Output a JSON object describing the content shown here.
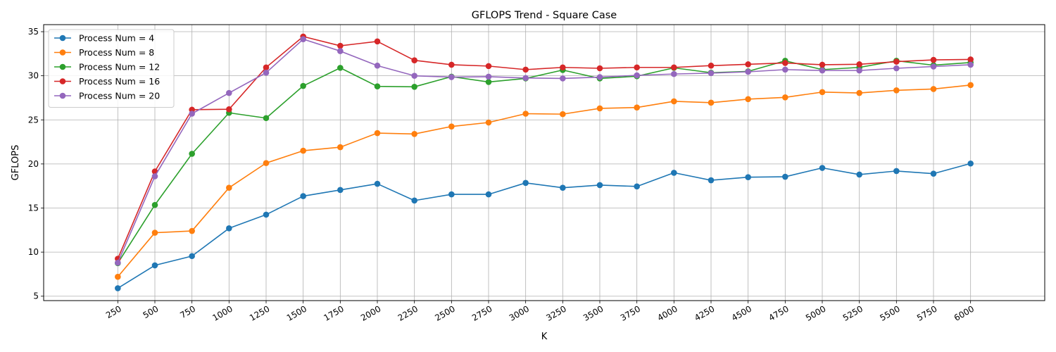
{
  "chart_data": {
    "type": "line",
    "title": "GFLOPS Trend - Square Case",
    "xlabel": "K",
    "ylabel": "GFLOPS",
    "x": [
      250,
      500,
      750,
      1000,
      1250,
      1500,
      1750,
      2000,
      2250,
      2500,
      2750,
      3000,
      3250,
      3500,
      3750,
      4000,
      4250,
      4500,
      4750,
      5000,
      5250,
      5500,
      5750,
      6000
    ],
    "yticks": [
      5,
      10,
      15,
      20,
      25,
      30,
      35
    ],
    "ylim": [
      4.5,
      35.8
    ],
    "xlim": [
      -250,
      6500
    ],
    "grid": true,
    "legend_position": "top-left",
    "series": [
      {
        "name": "Process Num = 4",
        "color": "#1f77b4",
        "values": [
          5.9,
          8.5,
          9.55,
          12.7,
          14.25,
          16.35,
          17.05,
          17.75,
          15.85,
          16.55,
          16.55,
          17.85,
          17.3,
          17.6,
          17.45,
          19.0,
          18.15,
          18.5,
          18.55,
          19.55,
          18.8,
          19.2,
          18.9,
          20.05
        ]
      },
      {
        "name": "Process Num = 8",
        "color": "#ff7f0e",
        "values": [
          7.2,
          12.2,
          12.4,
          17.3,
          20.1,
          21.5,
          21.9,
          23.5,
          23.4,
          24.25,
          24.7,
          25.7,
          25.65,
          26.3,
          26.4,
          27.1,
          26.95,
          27.35,
          27.55,
          28.15,
          28.05,
          28.35,
          28.5,
          28.95
        ]
      },
      {
        "name": "Process Num = 12",
        "color": "#2ca02c",
        "values": [
          8.75,
          15.35,
          21.15,
          25.8,
          25.2,
          28.85,
          30.9,
          28.8,
          28.75,
          29.9,
          29.3,
          29.7,
          30.65,
          29.7,
          29.95,
          30.9,
          30.35,
          30.5,
          31.7,
          30.7,
          30.95,
          31.7,
          31.2,
          31.5
        ]
      },
      {
        "name": "Process Num = 16",
        "color": "#d62728",
        "values": [
          9.25,
          19.15,
          26.15,
          26.2,
          30.95,
          34.45,
          33.4,
          33.9,
          31.75,
          31.25,
          31.1,
          30.7,
          30.95,
          30.85,
          30.95,
          30.95,
          31.15,
          31.3,
          31.45,
          31.25,
          31.3,
          31.6,
          31.8,
          31.85
        ]
      },
      {
        "name": "Process Num = 20",
        "color": "#9467bd",
        "values": [
          8.8,
          18.6,
          25.7,
          28.05,
          30.35,
          34.15,
          32.8,
          31.15,
          30.0,
          29.85,
          29.9,
          29.75,
          29.7,
          29.85,
          30.05,
          30.2,
          30.3,
          30.45,
          30.7,
          30.6,
          30.6,
          30.85,
          31.05,
          31.25
        ]
      }
    ]
  }
}
